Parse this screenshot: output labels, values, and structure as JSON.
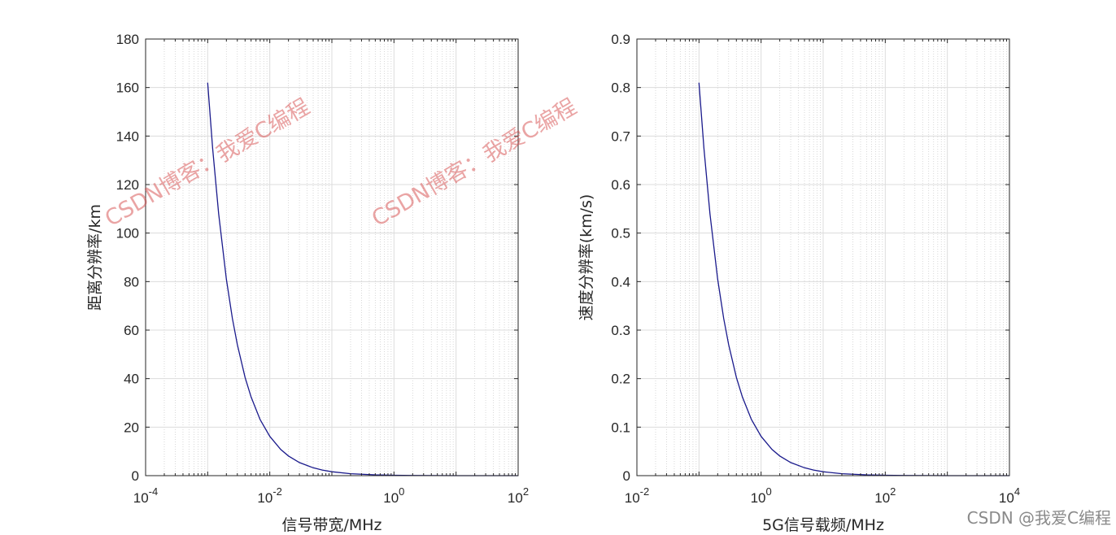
{
  "watermarks": [
    "CSDN博客：我爱C编程",
    "CSDN博客：我爱C编程"
  ],
  "credit": "CSDN @我爱C编程",
  "chart_data": [
    {
      "type": "line",
      "xscale": "log",
      "xlim": [
        0.0001,
        100
      ],
      "ylim": [
        0,
        180
      ],
      "xticks": [
        0.0001,
        0.01,
        1,
        100
      ],
      "xtick_labels": [
        {
          "base": "10",
          "exp": "-4"
        },
        {
          "base": "10",
          "exp": "-2"
        },
        {
          "base": "10",
          "exp": "0"
        },
        {
          "base": "10",
          "exp": "2"
        }
      ],
      "yticks": [
        0,
        20,
        40,
        60,
        80,
        100,
        120,
        140,
        160,
        180
      ],
      "xlabel": "信号带宽/MHz",
      "ylabel": "距离分辨率/km",
      "grid": true,
      "minor_grid": true,
      "line_color": "#1a1a8c",
      "series": [
        {
          "x": [
            0.001,
            0.0012,
            0.0015,
            0.002,
            0.0025,
            0.003,
            0.004,
            0.005,
            0.007,
            0.01,
            0.015,
            0.02,
            0.03,
            0.05,
            0.07,
            0.1,
            0.2,
            0.5,
            1,
            2,
            5,
            10,
            20,
            50,
            100
          ],
          "y": [
            162,
            135,
            108,
            81,
            64.8,
            54,
            40.5,
            32.4,
            23.1,
            16.2,
            10.8,
            8.1,
            5.4,
            3.24,
            2.31,
            1.62,
            0.81,
            0.32,
            0.16,
            0.08,
            0.03,
            0.016,
            0.008,
            0.003,
            0.0016
          ]
        }
      ]
    },
    {
      "type": "line",
      "xscale": "log",
      "xlim": [
        0.01,
        10000
      ],
      "ylim": [
        0,
        0.9
      ],
      "xticks": [
        0.01,
        1,
        100,
        10000
      ],
      "xtick_labels": [
        {
          "base": "10",
          "exp": "-2"
        },
        {
          "base": "10",
          "exp": "0"
        },
        {
          "base": "10",
          "exp": "2"
        },
        {
          "base": "10",
          "exp": "4"
        }
      ],
      "yticks": [
        0,
        0.1,
        0.2,
        0.3,
        0.4,
        0.5,
        0.6,
        0.7,
        0.8,
        0.9
      ],
      "xlabel": "5G信号载频/MHz",
      "ylabel": "速度分辨率(km/s)",
      "grid": true,
      "minor_grid": true,
      "line_color": "#1a1a8c",
      "series": [
        {
          "x": [
            0.1,
            0.12,
            0.15,
            0.2,
            0.25,
            0.3,
            0.4,
            0.5,
            0.7,
            1,
            1.5,
            2,
            3,
            5,
            7,
            10,
            20,
            50,
            100,
            200,
            500,
            1000,
            2000,
            5000,
            10000
          ],
          "y": [
            0.81,
            0.675,
            0.54,
            0.405,
            0.324,
            0.27,
            0.2025,
            0.162,
            0.1157,
            0.081,
            0.054,
            0.0405,
            0.027,
            0.0162,
            0.0116,
            0.0081,
            0.00405,
            0.00162,
            0.00081,
            0.0004,
            0.00016,
            8e-05,
            4e-05,
            1.6e-05,
            8e-06
          ]
        }
      ]
    }
  ]
}
